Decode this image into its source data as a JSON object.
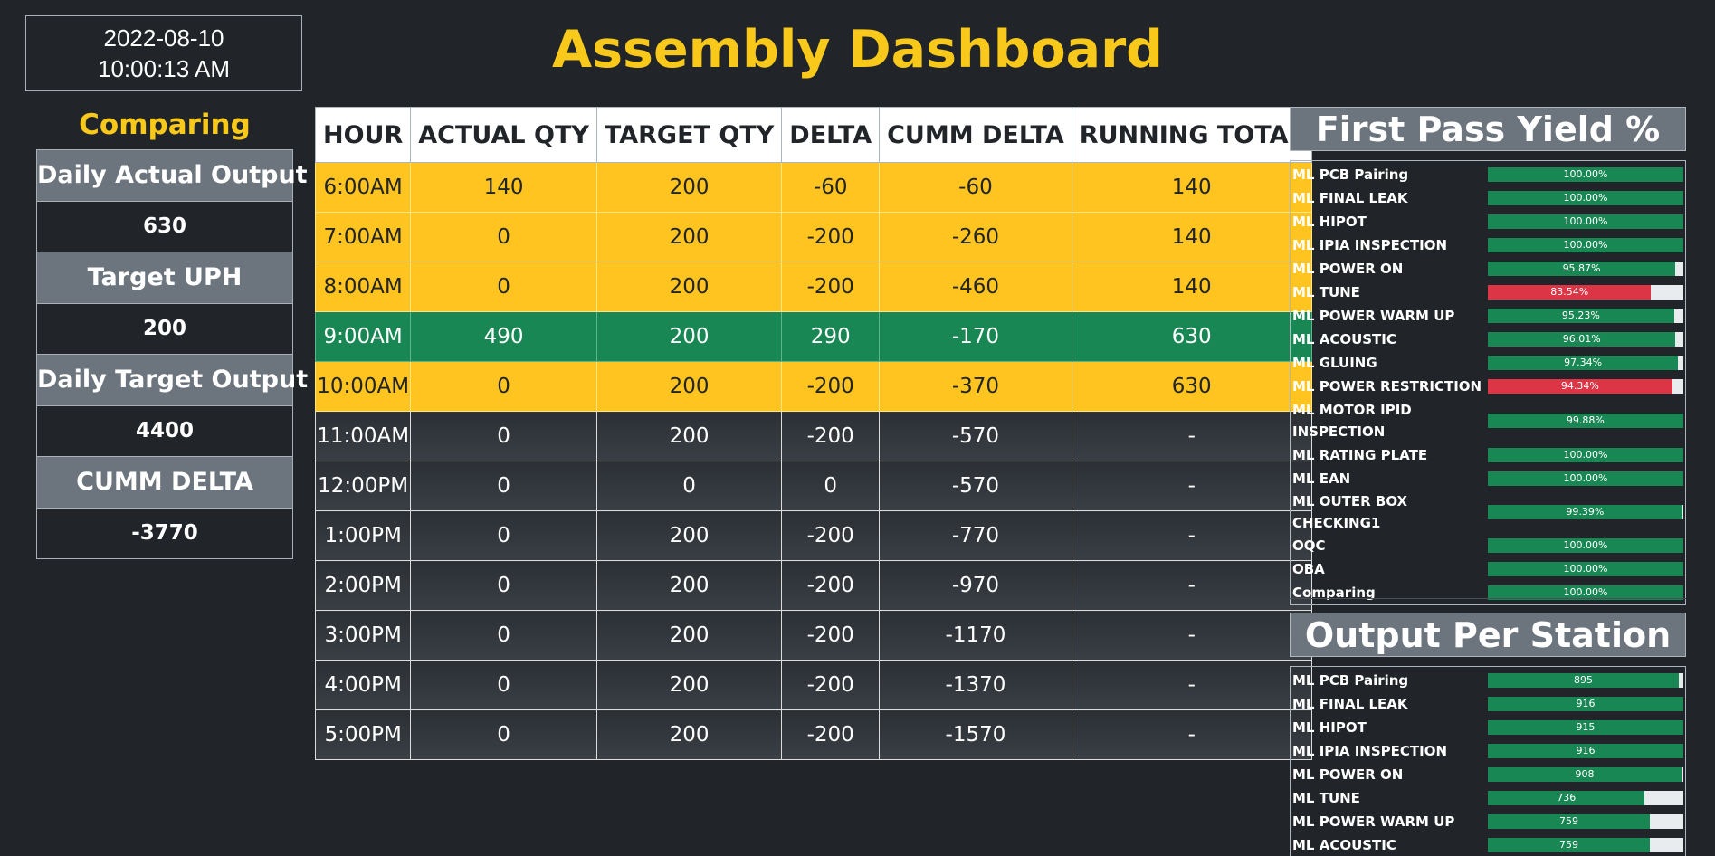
{
  "clock": {
    "date": "2022-08-10",
    "time": "10:00:13 AM"
  },
  "title": "Assembly Dashboard",
  "comparing": {
    "title": "Comparing",
    "items": [
      {
        "label": "Daily Actual Output",
        "value": "630"
      },
      {
        "label": "Target UPH",
        "value": "200"
      },
      {
        "label": "Daily Target Output",
        "value": "4400"
      },
      {
        "label": "CUMM DELTA",
        "value": "-3770"
      }
    ]
  },
  "hourly": {
    "headers": [
      "HOUR",
      "ACTUAL QTY",
      "TARGET QTY",
      "DELTA",
      "CUMM DELTA",
      "RUNNING TOTAL"
    ],
    "rows": [
      {
        "status": "yellow",
        "cells": [
          "6:00AM",
          "140",
          "200",
          "-60",
          "-60",
          "140"
        ]
      },
      {
        "status": "yellow",
        "cells": [
          "7:00AM",
          "0",
          "200",
          "-200",
          "-260",
          "140"
        ]
      },
      {
        "status": "yellow",
        "cells": [
          "8:00AM",
          "0",
          "200",
          "-200",
          "-460",
          "140"
        ]
      },
      {
        "status": "green",
        "cells": [
          "9:00AM",
          "490",
          "200",
          "290",
          "-170",
          "630"
        ]
      },
      {
        "status": "yellow",
        "cells": [
          "10:00AM",
          "0",
          "200",
          "-200",
          "-370",
          "630"
        ]
      },
      {
        "status": "dark",
        "cells": [
          "11:00AM",
          "0",
          "200",
          "-200",
          "-570",
          "-"
        ]
      },
      {
        "status": "dark",
        "cells": [
          "12:00PM",
          "0",
          "0",
          "0",
          "-570",
          "-"
        ]
      },
      {
        "status": "dark",
        "cells": [
          "1:00PM",
          "0",
          "200",
          "-200",
          "-770",
          "-"
        ]
      },
      {
        "status": "dark",
        "cells": [
          "2:00PM",
          "0",
          "200",
          "-200",
          "-970",
          "-"
        ]
      },
      {
        "status": "dark",
        "cells": [
          "3:00PM",
          "0",
          "200",
          "-200",
          "-1170",
          "-"
        ]
      },
      {
        "status": "dark",
        "cells": [
          "4:00PM",
          "0",
          "200",
          "-200",
          "-1370",
          "-"
        ]
      },
      {
        "status": "dark",
        "cells": [
          "5:00PM",
          "0",
          "200",
          "-200",
          "-1570",
          "-"
        ]
      }
    ]
  },
  "fpy": {
    "title": "First Pass Yield %",
    "stations": [
      {
        "name": "ML PCB Pairing",
        "label": "100.00%",
        "fill": 1.0,
        "color": "green"
      },
      {
        "name": "ML FINAL LEAK",
        "label": "100.00%",
        "fill": 1.0,
        "color": "green"
      },
      {
        "name": "ML HIPOT",
        "label": "100.00%",
        "fill": 1.0,
        "color": "green"
      },
      {
        "name": "ML IPIA INSPECTION",
        "label": "100.00%",
        "fill": 1.0,
        "color": "green"
      },
      {
        "name": "ML POWER ON",
        "label": "95.87%",
        "fill": 0.9587,
        "color": "green"
      },
      {
        "name": "ML TUNE",
        "label": "83.54%",
        "fill": 0.8354,
        "color": "red"
      },
      {
        "name": "ML POWER WARM UP",
        "label": "95.23%",
        "fill": 0.9523,
        "color": "green"
      },
      {
        "name": "ML ACOUSTIC",
        "label": "96.01%",
        "fill": 0.9601,
        "color": "green"
      },
      {
        "name": "ML GLUING",
        "label": "97.34%",
        "fill": 0.9734,
        "color": "green"
      },
      {
        "name": "ML POWER RESTRICTION",
        "label": "94.34%",
        "fill": 0.9434,
        "color": "red"
      },
      {
        "name": "ML MOTOR IPID INSPECTION",
        "label": "99.88%",
        "fill": 0.9988,
        "color": "green"
      },
      {
        "name": "ML RATING PLATE",
        "label": "100.00%",
        "fill": 1.0,
        "color": "green"
      },
      {
        "name": "ML EAN",
        "label": "100.00%",
        "fill": 1.0,
        "color": "green"
      },
      {
        "name": "ML OUTER BOX CHECKING1",
        "label": "99.39%",
        "fill": 0.9939,
        "color": "green"
      },
      {
        "name": "OQC",
        "label": "100.00%",
        "fill": 1.0,
        "color": "green"
      },
      {
        "name": "OBA",
        "label": "100.00%",
        "fill": 1.0,
        "color": "green"
      },
      {
        "name": "Comparing",
        "label": "100.00%",
        "fill": 1.0,
        "color": "green"
      }
    ]
  },
  "output": {
    "title": "Output Per Station",
    "stations": [
      {
        "name": "ML PCB Pairing",
        "label": "895",
        "fill": 0.977
      },
      {
        "name": "ML FINAL LEAK",
        "label": "916",
        "fill": 1.0
      },
      {
        "name": "ML HIPOT",
        "label": "915",
        "fill": 0.999
      },
      {
        "name": "ML IPIA INSPECTION",
        "label": "916",
        "fill": 1.0
      },
      {
        "name": "ML POWER ON",
        "label": "908",
        "fill": 0.991
      },
      {
        "name": "ML TUNE",
        "label": "736",
        "fill": 0.803
      },
      {
        "name": "ML POWER WARM UP",
        "label": "759",
        "fill": 0.829
      },
      {
        "name": "ML ACOUSTIC",
        "label": "759",
        "fill": 0.829
      }
    ]
  },
  "colors": {
    "accent": "#f8c81b",
    "yellow_row": "#ffc41f",
    "green_row": "#198754",
    "red_bar": "#dc3545",
    "header_gray": "#6c757d"
  }
}
